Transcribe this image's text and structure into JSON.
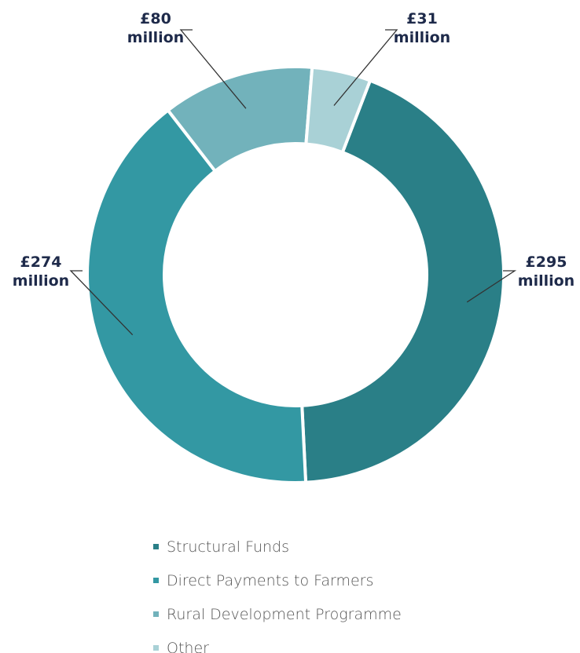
{
  "chart_data": {
    "type": "donut",
    "categories": [
      "Structural Funds",
      "Direct Payments to Farmers",
      "Rural Development Programme",
      "Other"
    ],
    "values": [
      295,
      274,
      80,
      31
    ],
    "value_labels": [
      "£295 million",
      "£274 million",
      "£80 million",
      "£31 million"
    ],
    "colors": [
      "#2a7f87",
      "#3398a3",
      "#72b2bb",
      "#a9d1d6"
    ]
  }
}
